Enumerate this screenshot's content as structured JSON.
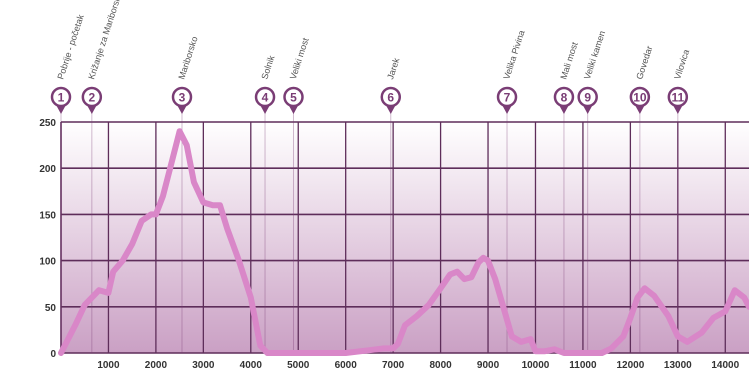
{
  "chart_data": {
    "type": "area",
    "title": "",
    "xlabel": "",
    "ylabel": "",
    "xlim": [
      0,
      14500
    ],
    "ylim": [
      0,
      250
    ],
    "x_ticks": [
      "1000",
      "2000",
      "3000",
      "4000",
      "5000",
      "6000",
      "7000",
      "8000",
      "9000",
      "10000",
      "11000",
      "12000",
      "13000",
      "14000"
    ],
    "y_ticks": [
      "0",
      "50",
      "100",
      "150",
      "200",
      "250"
    ],
    "colors": {
      "line": "#d987c8",
      "grid": "#5e2d5a",
      "fill_top": "#ffffff",
      "fill_bottom": "#caa0c4",
      "marker": "#7a3d75"
    },
    "series": [
      {
        "values": [
          [
            0,
            0
          ],
          [
            300,
            30
          ],
          [
            500,
            52
          ],
          [
            800,
            68
          ],
          [
            1000,
            65
          ],
          [
            1100,
            88
          ],
          [
            1300,
            100
          ],
          [
            1500,
            118
          ],
          [
            1700,
            143
          ],
          [
            1900,
            150
          ],
          [
            2000,
            150
          ],
          [
            2150,
            170
          ],
          [
            2350,
            210
          ],
          [
            2500,
            240
          ],
          [
            2650,
            225
          ],
          [
            2800,
            185
          ],
          [
            3000,
            163
          ],
          [
            3200,
            160
          ],
          [
            3350,
            160
          ],
          [
            3500,
            135
          ],
          [
            3750,
            100
          ],
          [
            4000,
            60
          ],
          [
            4200,
            8
          ],
          [
            4350,
            0
          ],
          [
            4700,
            0
          ],
          [
            5200,
            0
          ],
          [
            6000,
            0
          ],
          [
            6500,
            3
          ],
          [
            6800,
            5
          ],
          [
            7000,
            5
          ],
          [
            7100,
            10
          ],
          [
            7250,
            30
          ],
          [
            7500,
            40
          ],
          [
            7750,
            52
          ],
          [
            8000,
            70
          ],
          [
            8200,
            85
          ],
          [
            8350,
            88
          ],
          [
            8500,
            80
          ],
          [
            8650,
            82
          ],
          [
            8800,
            98
          ],
          [
            8900,
            103
          ],
          [
            9000,
            100
          ],
          [
            9150,
            80
          ],
          [
            9350,
            45
          ],
          [
            9500,
            18
          ],
          [
            9700,
            12
          ],
          [
            9900,
            15
          ],
          [
            10000,
            2
          ],
          [
            10200,
            2
          ],
          [
            10400,
            4
          ],
          [
            10600,
            0
          ],
          [
            11000,
            0
          ],
          [
            11400,
            0
          ],
          [
            11600,
            5
          ],
          [
            11850,
            18
          ],
          [
            12000,
            38
          ],
          [
            12150,
            60
          ],
          [
            12300,
            70
          ],
          [
            12500,
            62
          ],
          [
            12800,
            40
          ],
          [
            13000,
            18
          ],
          [
            13200,
            12
          ],
          [
            13500,
            22
          ],
          [
            13750,
            38
          ],
          [
            14000,
            45
          ],
          [
            14200,
            68
          ],
          [
            14400,
            60
          ],
          [
            14500,
            50
          ]
        ]
      }
    ],
    "points_of_interest": [
      {
        "num": "1",
        "label": "Pobrije - početak",
        "x": 0
      },
      {
        "num": "2",
        "label": "Križanje za Mariborsko",
        "x": 650
      },
      {
        "num": "3",
        "label": "Mariborsko",
        "x": 2550
      },
      {
        "num": "4",
        "label": "Solnik",
        "x": 4300
      },
      {
        "num": "5",
        "label": "Veliki most",
        "x": 4900
      },
      {
        "num": "6",
        "label": "Jarek",
        "x": 6950
      },
      {
        "num": "7",
        "label": "Velika Pivina",
        "x": 9400
      },
      {
        "num": "8",
        "label": "Mali most",
        "x": 10600
      },
      {
        "num": "9",
        "label": "Veliki kamen",
        "x": 11100
      },
      {
        "num": "10",
        "label": "Govedar",
        "x": 12200
      },
      {
        "num": "11",
        "label": "Vilovica",
        "x": 13000
      }
    ]
  }
}
